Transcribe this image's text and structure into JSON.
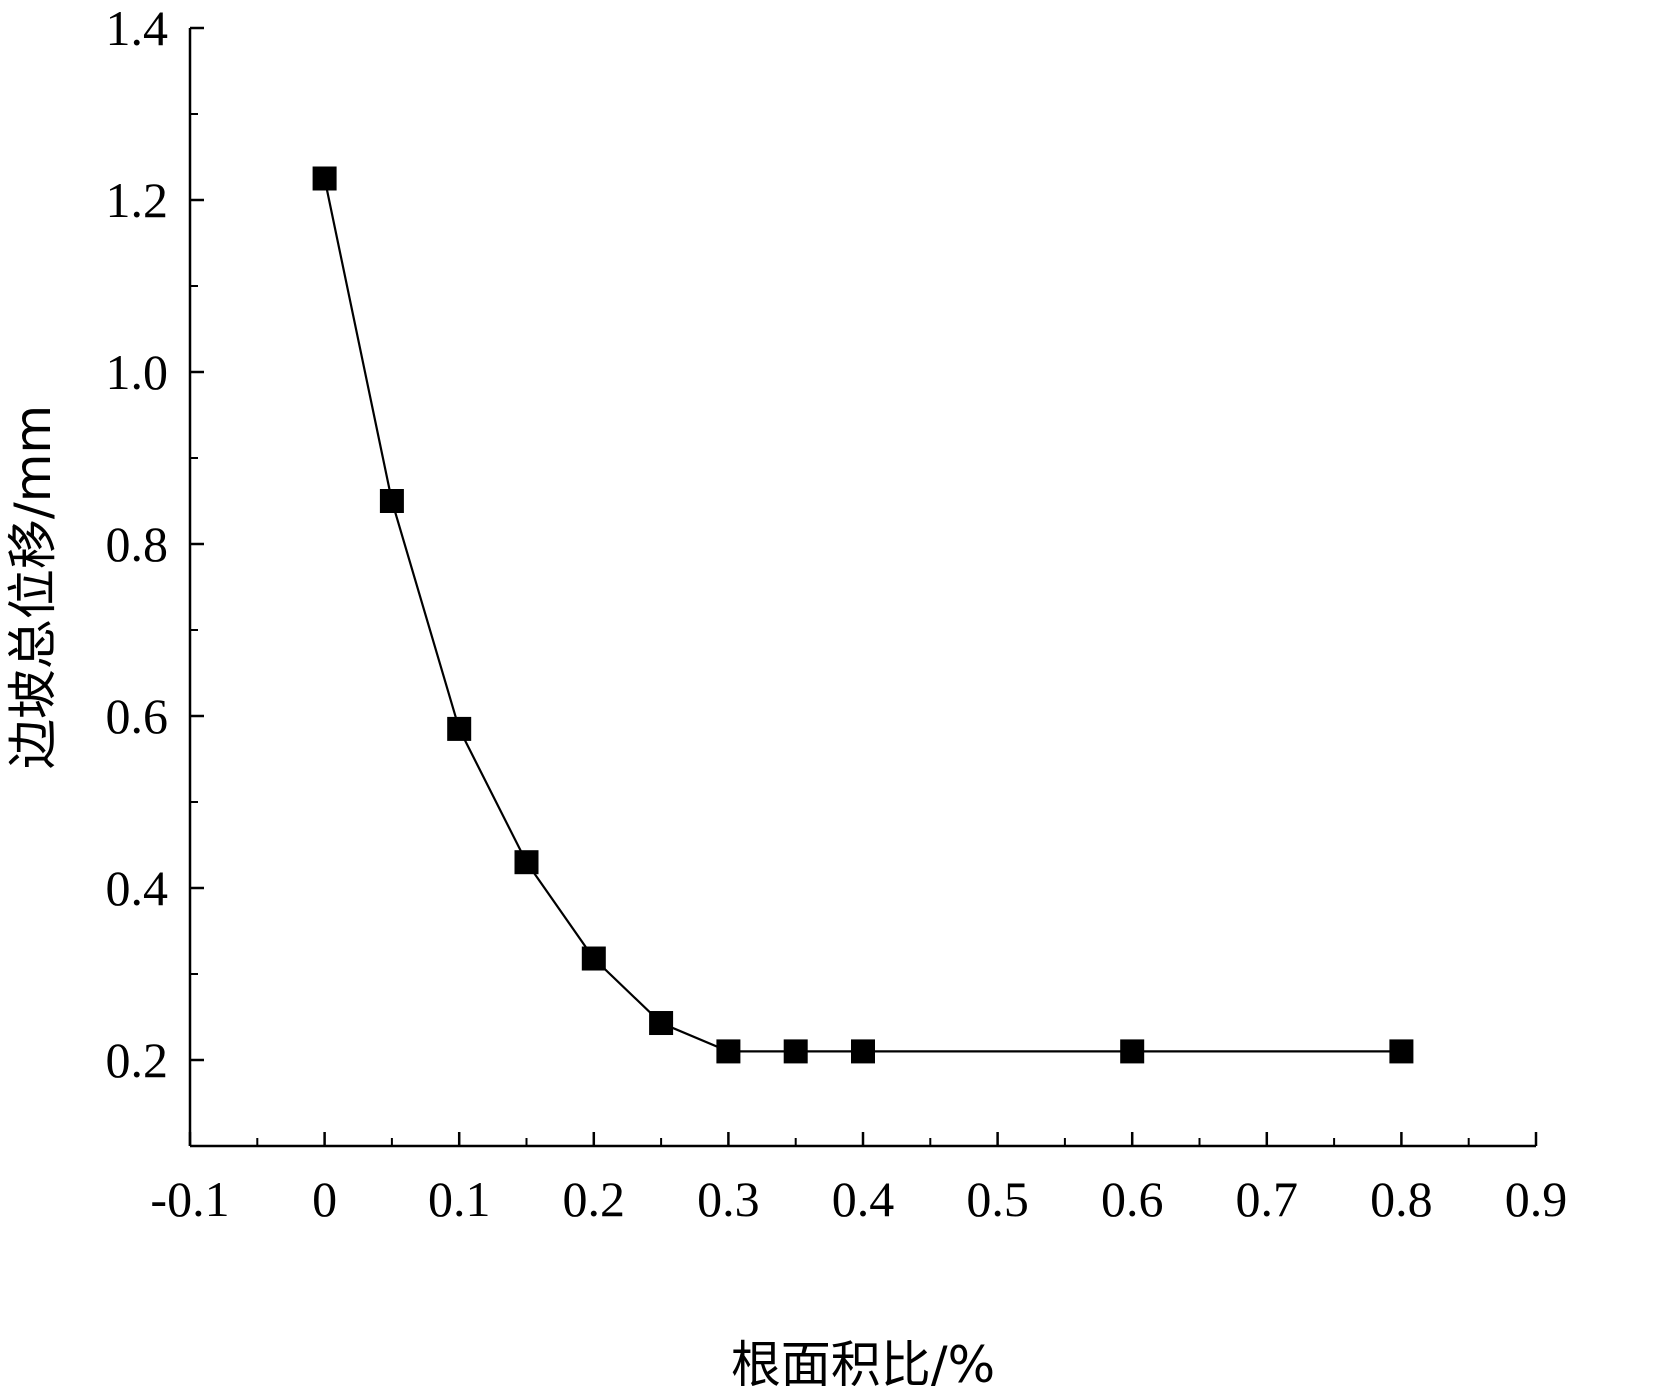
{
  "chart_data": {
    "type": "line",
    "xlabel": "根面积比/%",
    "ylabel": "边坡总位移/mm",
    "xlim": [
      -0.1,
      0.9
    ],
    "ylim": [
      0.1,
      1.4
    ],
    "x_ticks": [
      "-0.1",
      "0",
      "0.1",
      "0.2",
      "0.3",
      "0.4",
      "0.5",
      "0.6",
      "0.7",
      "0.8",
      "0.9"
    ],
    "y_ticks": [
      "0.2",
      "0.4",
      "0.6",
      "0.8",
      "1.0",
      "1.2",
      "1.4"
    ],
    "grid": false,
    "legend": "none",
    "marker": "square",
    "color": "#000000",
    "series": [
      {
        "x": [
          0,
          0.05,
          0.1,
          0.15,
          0.2,
          0.25,
          0.3,
          0.35,
          0.4,
          0.6,
          0.8
        ],
        "y": [
          1.225,
          0.85,
          0.585,
          0.43,
          0.318,
          0.243,
          0.21,
          0.21,
          0.21,
          0.21,
          0.21
        ]
      }
    ]
  }
}
